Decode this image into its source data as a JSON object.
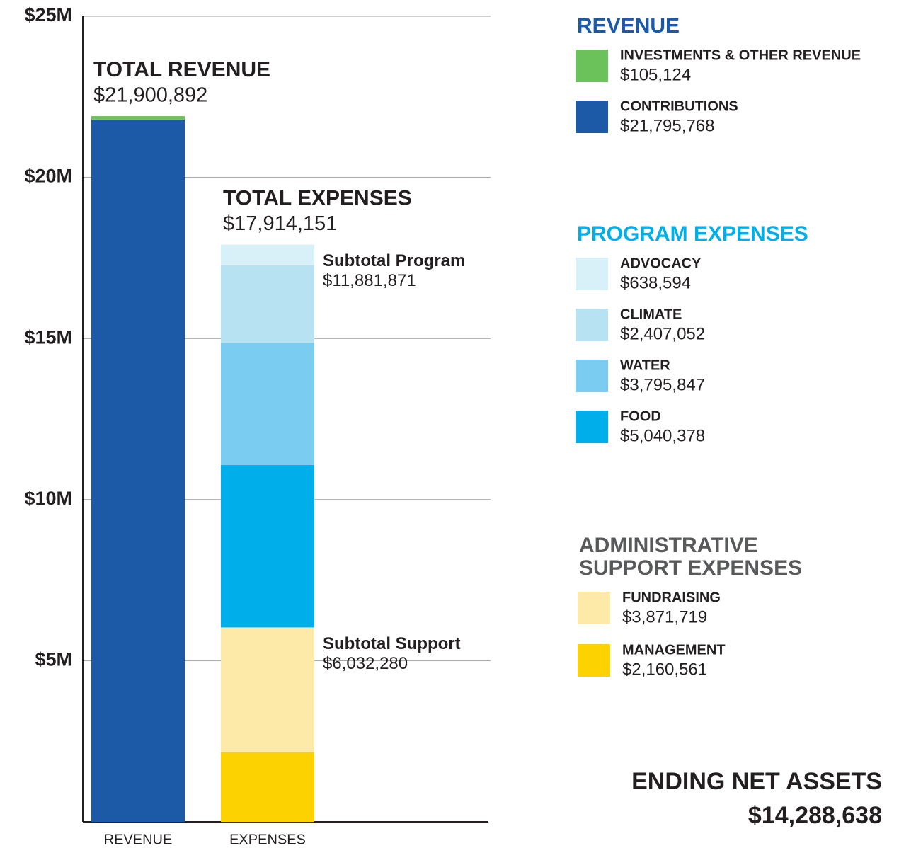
{
  "chart_data": {
    "type": "bar",
    "stacked": true,
    "categories": [
      "REVENUE",
      "EXPENSES"
    ],
    "ylim": [
      0,
      25000000
    ],
    "yticks": [
      {
        "value": 5000000,
        "label": "$5M"
      },
      {
        "value": 10000000,
        "label": "$10M"
      },
      {
        "value": 15000000,
        "label": "$15M"
      },
      {
        "value": 20000000,
        "label": "$20M"
      },
      {
        "value": 25000000,
        "label": "$25M"
      }
    ],
    "grid": true,
    "totals": [
      {
        "label": "TOTAL REVENUE",
        "value_label": "$21,900,892"
      },
      {
        "label": "TOTAL EXPENSES",
        "value_label": "$17,914,151"
      }
    ],
    "groups": [
      {
        "title": "REVENUE",
        "title_color": "#1b5aa8",
        "series": [
          {
            "name": "CONTRIBUTIONS",
            "color": "#1c5aa8",
            "values": [
              21795768,
              null
            ],
            "value_labels": [
              "$21,795,768",
              null
            ]
          },
          {
            "name": "INVESTMENTS & OTHER REVENUE",
            "color": "#6cc25a",
            "values": [
              105124,
              null
            ],
            "value_labels": [
              "$105,124",
              null
            ]
          }
        ]
      },
      {
        "title": "PROGRAM EXPENSES",
        "title_color": "#00aee8",
        "subtotal_label": "Subtotal Program",
        "subtotal_value_label": "$11,881,871",
        "series": [
          {
            "name": "FOOD",
            "color": "#00aeea",
            "values": [
              null,
              5040378
            ],
            "value_labels": [
              null,
              "$5,040,378"
            ]
          },
          {
            "name": "WATER",
            "color": "#7acdf1",
            "values": [
              null,
              3795847
            ],
            "value_labels": [
              null,
              "$3,795,847"
            ]
          },
          {
            "name": "CLIMATE",
            "color": "#b6e2f1",
            "values": [
              null,
              2407052
            ],
            "value_labels": [
              null,
              "$2,407,052"
            ]
          },
          {
            "name": "ADVOCACY",
            "color": "#d8f0f7",
            "values": [
              null,
              638594
            ],
            "value_labels": [
              null,
              "$638,594"
            ]
          }
        ]
      },
      {
        "title": [
          "ADMINISTRATIVE",
          "SUPPORT EXPENSES"
        ],
        "title_color": "#58595b",
        "subtotal_label": "Subtotal Support",
        "subtotal_value_label": "$6,032,280",
        "series": [
          {
            "name": "MANAGEMENT",
            "color": "#fcd200",
            "values": [
              null,
              2160561
            ],
            "value_labels": [
              null,
              "$2,160,561"
            ]
          },
          {
            "name": "FUNDRAISING",
            "color": "#fdeaa8",
            "values": [
              null,
              3871719
            ],
            "value_labels": [
              null,
              "$3,871,719"
            ]
          }
        ]
      }
    ],
    "net_assets": {
      "label": "ENDING NET ASSETS",
      "value_label": "$14,288,638"
    }
  }
}
